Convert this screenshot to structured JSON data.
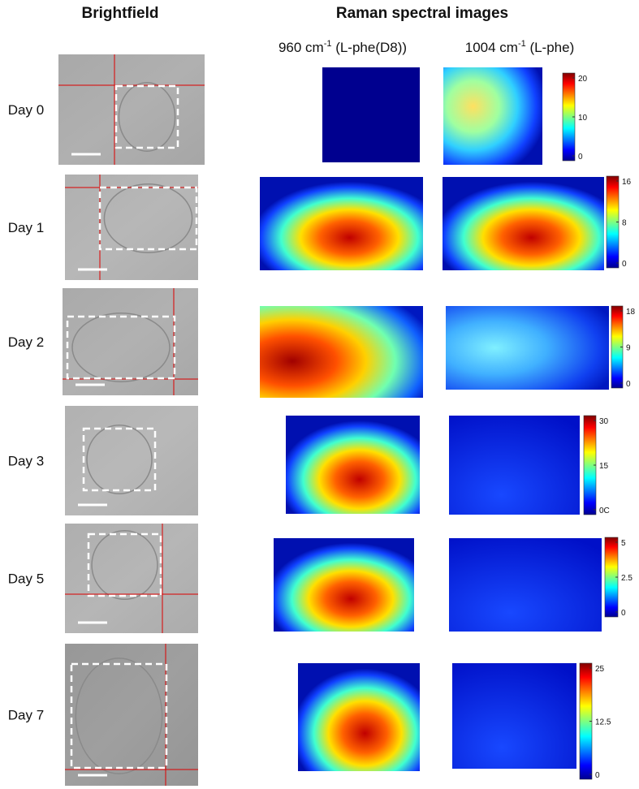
{
  "header": {
    "brightfield": "Brightfield",
    "raman": "Raman spectral images"
  },
  "channels": [
    {
      "prefix": "960 cm",
      "sup": "-1",
      "suffix": " (L-phe(D8))"
    },
    {
      "prefix": "1004 cm",
      "sup": "-1",
      "suffix": " (L-phe)"
    }
  ],
  "rows": [
    {
      "label": "Day 0",
      "colorbar_ticks": [
        "20",
        "10",
        "0"
      ]
    },
    {
      "label": "Day 1",
      "colorbar_ticks": [
        "16",
        "8",
        "0"
      ]
    },
    {
      "label": "Day 2",
      "colorbar_ticks": [
        "18",
        "9",
        "0"
      ]
    },
    {
      "label": "Day 3",
      "colorbar_ticks": [
        "30",
        "15",
        "0C"
      ]
    },
    {
      "label": "Day 5",
      "colorbar_ticks": [
        "5",
        "2.5",
        "0"
      ]
    },
    {
      "label": "Day 7",
      "colorbar_ticks": [
        "25",
        "12.5",
        "0"
      ]
    }
  ]
}
